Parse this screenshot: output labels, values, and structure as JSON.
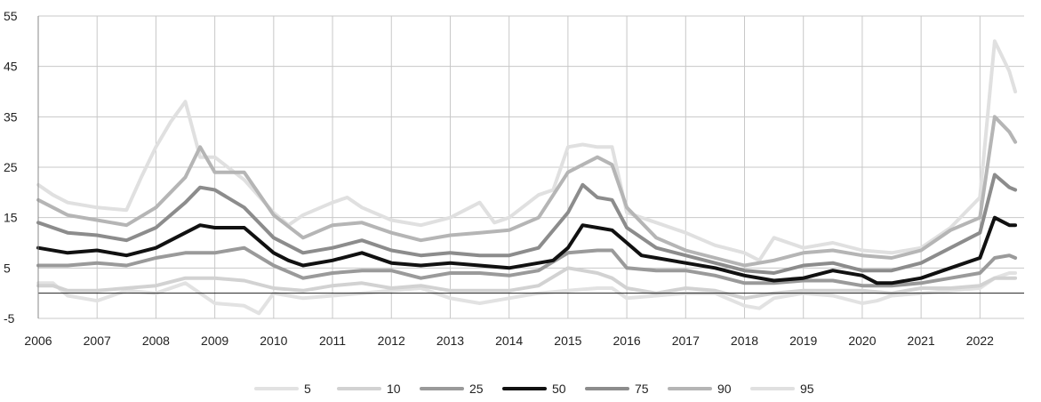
{
  "chart_data": {
    "type": "line",
    "title": "",
    "xlabel": "",
    "ylabel": "",
    "ylim": [
      -5,
      55
    ],
    "yticks": [
      55,
      45,
      35,
      25,
      15,
      5,
      -5
    ],
    "xlim": [
      2006,
      2022.75
    ],
    "xticks": [
      "2006",
      "2007",
      "2008",
      "2009",
      "2010",
      "2011",
      "2012",
      "2013",
      "2014",
      "2015",
      "2016",
      "2017",
      "2018",
      "2019",
      "2020",
      "2021",
      "2022"
    ],
    "grid": true,
    "legend_position": "bottom",
    "series": [
      {
        "name": "5",
        "color": "#e2e2e2",
        "x": [
          2006,
          2006.25,
          2006.5,
          2006.75,
          2007,
          2007.5,
          2008,
          2008.5,
          2009,
          2009.5,
          2009.75,
          2010,
          2010.5,
          2011,
          2011.5,
          2012,
          2012.5,
          2013,
          2013.5,
          2014,
          2014.5,
          2015,
          2015.5,
          2015.75,
          2016,
          2016.5,
          2017,
          2017.5,
          2018,
          2018.25,
          2018.5,
          2019,
          2019.5,
          2020,
          2020.25,
          2020.5,
          2021,
          2021.5,
          2022,
          2022.25,
          2022.5,
          2022.6
        ],
        "values": [
          2,
          2,
          -0.5,
          -1,
          -1.5,
          0.5,
          0,
          2,
          -2,
          -2.5,
          -4,
          0,
          -1,
          -0.5,
          0,
          0.5,
          1,
          -1,
          -2,
          -1,
          0,
          0.5,
          1,
          1,
          -1,
          -0.5,
          0,
          0,
          -2.5,
          -3,
          -1,
          0,
          -0.5,
          -2,
          -1.5,
          -0.5,
          0,
          0.5,
          1,
          3,
          4,
          4
        ]
      },
      {
        "name": "10",
        "color": "#d2d2d2",
        "x": [
          2006,
          2006.25,
          2006.5,
          2006.75,
          2007,
          2007.5,
          2008,
          2008.5,
          2009,
          2009.5,
          2010,
          2010.5,
          2011,
          2011.5,
          2012,
          2012.5,
          2013,
          2013.5,
          2014,
          2014.5,
          2015,
          2015.5,
          2015.75,
          2016,
          2016.5,
          2017,
          2017.5,
          2018,
          2018.5,
          2019,
          2019.5,
          2020,
          2020.5,
          2021,
          2021.5,
          2022,
          2022.25,
          2022.5,
          2022.6
        ],
        "values": [
          1.5,
          1.5,
          0.5,
          0.5,
          0.5,
          1,
          1.5,
          3,
          3,
          2.5,
          1,
          0.5,
          1.5,
          2,
          1,
          1.5,
          0.5,
          0.5,
          0.5,
          1.5,
          5,
          4,
          3,
          1,
          0,
          1,
          0.5,
          -1,
          0,
          0.5,
          0.5,
          0.5,
          0,
          1,
          1,
          1.5,
          3,
          3,
          3
        ]
      },
      {
        "name": "25",
        "color": "#9a9a9a",
        "x": [
          2006,
          2006.5,
          2007,
          2007.5,
          2008,
          2008.5,
          2009,
          2009.5,
          2010,
          2010.5,
          2011,
          2011.5,
          2012,
          2012.5,
          2013,
          2013.5,
          2014,
          2014.5,
          2015,
          2015.5,
          2015.75,
          2016,
          2016.5,
          2017,
          2017.5,
          2018,
          2018.5,
          2019,
          2019.5,
          2020,
          2020.5,
          2021,
          2021.5,
          2022,
          2022.25,
          2022.5,
          2022.6
        ],
        "values": [
          5.5,
          5.5,
          6,
          5.5,
          7,
          8,
          8,
          9,
          5.5,
          3,
          4,
          4.5,
          4.5,
          3,
          4,
          4,
          3.5,
          4.5,
          8,
          8.5,
          8.5,
          5,
          4.5,
          4.5,
          3.5,
          2,
          2,
          2.5,
          2.5,
          1.5,
          1.5,
          2,
          3,
          4,
          7,
          7.5,
          7
        ]
      },
      {
        "name": "50",
        "color": "#111111",
        "x": [
          2006,
          2006.5,
          2007,
          2007.5,
          2008,
          2008.5,
          2008.75,
          2009,
          2009.5,
          2010,
          2010.25,
          2010.5,
          2011,
          2011.5,
          2012,
          2012.5,
          2013,
          2013.5,
          2014,
          2014.5,
          2014.75,
          2015,
          2015.25,
          2015.5,
          2015.75,
          2016,
          2016.25,
          2016.5,
          2017,
          2017.5,
          2018,
          2018.5,
          2019,
          2019.5,
          2020,
          2020.25,
          2020.5,
          2021,
          2021.5,
          2022,
          2022.25,
          2022.5,
          2022.6
        ],
        "values": [
          9,
          8,
          8.5,
          7.5,
          9,
          12,
          13.5,
          13,
          13,
          8,
          6.5,
          5.5,
          6.5,
          8,
          6,
          5.5,
          6,
          5.5,
          5,
          6,
          6.5,
          9,
          13.5,
          13,
          12.5,
          10,
          7.5,
          7,
          6,
          5,
          3.5,
          2.5,
          3,
          4.5,
          3.5,
          2,
          2,
          3,
          5,
          7,
          15,
          13.5,
          13.5
        ]
      },
      {
        "name": "75",
        "color": "#8c8c8c",
        "x": [
          2006,
          2006.5,
          2007,
          2007.5,
          2008,
          2008.5,
          2008.75,
          2009,
          2009.5,
          2010,
          2010.5,
          2011,
          2011.5,
          2012,
          2012.5,
          2013,
          2013.5,
          2014,
          2014.5,
          2015,
          2015.25,
          2015.5,
          2015.75,
          2016,
          2016.5,
          2017,
          2017.5,
          2018,
          2018.5,
          2019,
          2019.5,
          2020,
          2020.5,
          2021,
          2021.5,
          2022,
          2022.25,
          2022.5,
          2022.6
        ],
        "values": [
          14,
          12,
          11.5,
          10.5,
          13,
          18,
          21,
          20.5,
          17,
          11,
          8,
          9,
          10.5,
          8.5,
          7.5,
          8,
          7.5,
          7.5,
          9,
          16,
          21.5,
          19,
          18.5,
          13,
          9,
          7.5,
          6,
          4.5,
          4,
          5.5,
          6,
          4.5,
          4.5,
          6,
          9,
          12,
          23.5,
          21,
          20.5
        ]
      },
      {
        "name": "90",
        "color": "#b5b5b5",
        "x": [
          2006,
          2006.25,
          2006.5,
          2007,
          2007.5,
          2008,
          2008.5,
          2008.75,
          2009,
          2009.5,
          2010,
          2010.5,
          2011,
          2011.5,
          2012,
          2012.5,
          2013,
          2013.5,
          2014,
          2014.5,
          2015,
          2015.25,
          2015.5,
          2015.75,
          2016,
          2016.5,
          2017,
          2017.5,
          2018,
          2018.5,
          2019,
          2019.5,
          2020,
          2020.5,
          2021,
          2021.5,
          2022,
          2022.25,
          2022.5,
          2022.6
        ],
        "values": [
          18.5,
          17,
          15.5,
          14.5,
          13.5,
          17,
          23,
          29,
          24,
          24,
          15.5,
          11,
          13.5,
          14,
          12,
          10.5,
          11.5,
          12,
          12.5,
          15,
          24,
          25.5,
          27,
          25.5,
          17,
          11,
          8.5,
          7,
          5.5,
          6.5,
          8,
          8.5,
          7.5,
          7,
          8.5,
          12.5,
          15,
          35,
          32,
          30
        ]
      },
      {
        "name": "95",
        "color": "#e0e0e0",
        "x": [
          2006,
          2006.25,
          2006.5,
          2007,
          2007.5,
          2007.75,
          2008,
          2008.25,
          2008.5,
          2008.75,
          2009,
          2009.5,
          2010,
          2010.25,
          2010.5,
          2011,
          2011.25,
          2011.5,
          2012,
          2012.5,
          2013,
          2013.5,
          2013.75,
          2014,
          2014.5,
          2014.75,
          2015,
          2015.25,
          2015.5,
          2015.75,
          2016,
          2016.5,
          2017,
          2017.5,
          2018,
          2018.25,
          2018.5,
          2019,
          2019.5,
          2020,
          2020.5,
          2021,
          2021.5,
          2022,
          2022.25,
          2022.5,
          2022.6
        ],
        "values": [
          21.5,
          19.5,
          18,
          17,
          16.5,
          23,
          29,
          34,
          38,
          27,
          27,
          22.5,
          16,
          13.5,
          15.5,
          18,
          19,
          17,
          14.5,
          13.5,
          15,
          18,
          14,
          15,
          19.5,
          20.5,
          29,
          29.5,
          29,
          29,
          16,
          14,
          12,
          9.5,
          8,
          6.5,
          11,
          9,
          10,
          8.5,
          8,
          9,
          13,
          19,
          50,
          44,
          40
        ]
      }
    ]
  }
}
